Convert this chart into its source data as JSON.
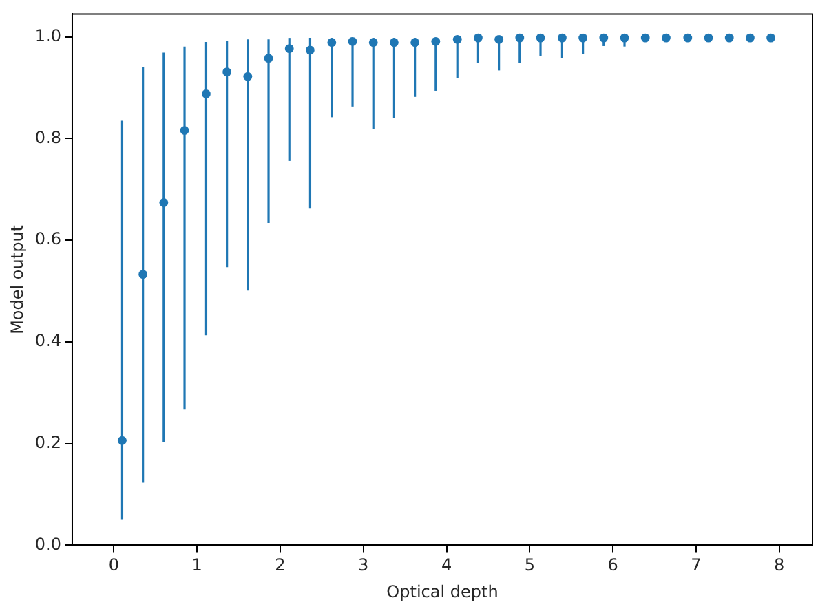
{
  "chart_data": {
    "type": "scatter",
    "xlabel": "Optical depth",
    "ylabel": "Model output",
    "marker": "circle",
    "grid": false,
    "legend": false,
    "xlim": [
      -0.5,
      8.4
    ],
    "xticks": [
      0,
      1,
      2,
      3,
      4,
      5,
      6,
      7,
      8
    ],
    "ylim": [
      0,
      1.045
    ],
    "yticks": [
      {
        "value": 0,
        "label": "0.0"
      },
      {
        "value": 0.2,
        "label": "0.2"
      },
      {
        "value": 0.4,
        "label": "0.4"
      },
      {
        "value": 0.6,
        "label": "0.6"
      },
      {
        "value": 0.8,
        "label": "0.8"
      },
      {
        "value": 1,
        "label": "1.0"
      }
    ],
    "series": [
      {
        "color": "#1f77b4",
        "x": [
          0.1,
          0.35,
          0.6,
          0.85,
          1.11,
          1.36,
          1.61,
          1.86,
          2.11,
          2.36,
          2.62,
          2.87,
          3.12,
          3.37,
          3.62,
          3.87,
          4.13,
          4.38,
          4.63,
          4.88,
          5.13,
          5.39,
          5.64,
          5.89,
          6.14,
          6.39,
          6.64,
          6.9,
          7.15,
          7.4,
          7.65,
          7.9
        ],
        "values": [
          0.206,
          0.533,
          0.674,
          0.816,
          0.888,
          0.931,
          0.922,
          0.958,
          0.977,
          0.974,
          0.989,
          0.991,
          0.989,
          0.989,
          0.989,
          0.991,
          0.995,
          0.998,
          0.995,
          0.998,
          0.998,
          0.998,
          0.998,
          0.998,
          0.998,
          0.998,
          0.998,
          0.998,
          0.998,
          0.998,
          0.998,
          0.998
        ],
        "errors": [
          [
            0.05,
            0.835
          ],
          [
            0.123,
            0.94
          ],
          [
            0.203,
            0.969
          ],
          [
            0.267,
            0.981
          ],
          [
            0.413,
            0.99
          ],
          [
            0.547,
            0.992
          ],
          [
            0.501,
            0.995
          ],
          [
            0.634,
            0.995
          ],
          [
            0.756,
            0.998
          ],
          [
            0.662,
            0.998
          ],
          [
            0.842,
            0.998
          ],
          [
            0.863,
            0.998
          ],
          [
            0.819,
            0.998
          ],
          [
            0.84,
            0.998
          ],
          [
            0.882,
            0.998
          ],
          [
            0.894,
            0.998
          ],
          [
            0.919,
            0.998
          ],
          [
            0.949,
            0.998
          ],
          [
            0.934,
            0.998
          ],
          [
            0.949,
            0.998
          ],
          [
            0.963,
            0.998
          ],
          [
            0.958,
            0.998
          ],
          [
            0.966,
            0.998
          ],
          [
            0.982,
            0.998
          ],
          [
            0.981,
            0.998
          ],
          null,
          null,
          null,
          null,
          null,
          null,
          null
        ]
      }
    ]
  }
}
